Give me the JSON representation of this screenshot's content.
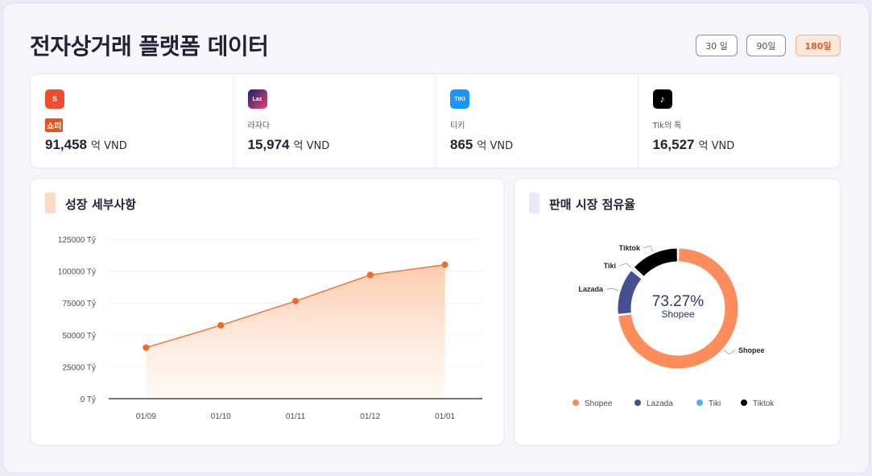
{
  "header": {
    "title": "전자상거래 플랫폼 데이터",
    "ranges": [
      {
        "label": "30 일",
        "active": false
      },
      {
        "label": "90일",
        "active": false
      },
      {
        "label": "180일",
        "active": true
      }
    ]
  },
  "stats": [
    {
      "logo_icon": "shopee-logo-icon",
      "logo_text": "S",
      "color": "#ee4d2d",
      "name": "쇼피",
      "value": "91,458",
      "unit": "억 VND"
    },
    {
      "logo_icon": "lazada-logo-icon",
      "logo_text": "Laz",
      "color": "#1a1f71",
      "name": "라자다",
      "value": "15,974",
      "unit": "억 VND"
    },
    {
      "logo_icon": "tiki-logo-icon",
      "logo_text": "TIKI",
      "color": "#1a94ff",
      "name": "티키",
      "value": "865",
      "unit": "억 VND"
    },
    {
      "logo_icon": "tiktok-logo-icon",
      "logo_text": "♪",
      "color": "#000000",
      "name": "Tik의 톡",
      "value": "16,527",
      "unit": "억 VND"
    }
  ],
  "growth": {
    "title": "성장 세부사항",
    "marker_color": "#fcd9c4"
  },
  "share": {
    "title": "판매 시장 점유율",
    "marker_color": "#e9e8f8",
    "center_value": "73.27%",
    "center_label": "Shopee"
  },
  "chart_data": [
    {
      "type": "area",
      "categories": [
        "01/09",
        "01/10",
        "01/11",
        "01/12",
        "01/01"
      ],
      "series": [
        {
          "values": [
            40000,
            57500,
            76500,
            97000,
            105000
          ]
        }
      ],
      "y_ticks": [
        "0 Tỷ",
        "25000 Tỷ",
        "50000 Tỷ",
        "75000 Tỷ",
        "100000 Tỷ",
        "125000 Tỷ"
      ],
      "ylim": [
        0,
        125000
      ],
      "color": "#ee6a28",
      "grid": true
    },
    {
      "type": "pie",
      "labels": [
        "Shopee",
        "Lazada",
        "Tiki",
        "Tiktok"
      ],
      "values": [
        73.27,
        12.8,
        0.69,
        13.24
      ],
      "colors": [
        "#ff8c5a",
        "#46508f",
        "#5aaef0",
        "#000000"
      ],
      "legend": "bottom"
    }
  ]
}
